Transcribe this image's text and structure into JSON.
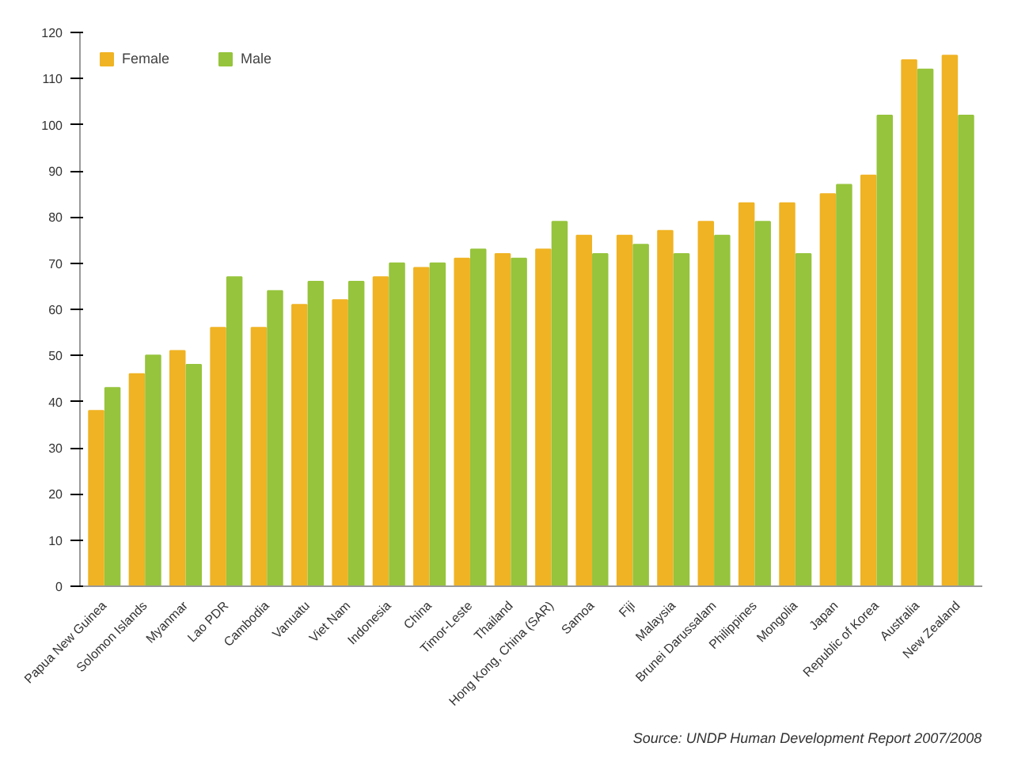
{
  "chart_data": {
    "type": "bar",
    "categories": [
      "Papua New Guinea",
      "Solomon Islands",
      "Myanmar",
      "Lao PDR",
      "Cambodia",
      "Vanuatu",
      "Viet Nam",
      "Indonesia",
      "China",
      "Timor-Leste",
      "Thailand",
      "Hong Kong, China (SAR)",
      "Samoa",
      "Fiji",
      "Malaysia",
      "Brunei Darussalam",
      "Philippines",
      "Mongolia",
      "Japan",
      "Republic of Korea",
      "Australia",
      "New Zealand"
    ],
    "series": [
      {
        "name": "Female",
        "color": "#f0b323",
        "values": [
          38,
          46,
          51,
          56,
          56,
          61,
          62,
          67,
          69,
          71,
          72,
          73,
          76,
          76,
          77,
          79,
          83,
          83,
          85,
          89,
          114,
          115
        ]
      },
      {
        "name": "Male",
        "color": "#96c43c",
        "values": [
          43,
          50,
          48,
          67,
          64,
          66,
          66,
          70,
          70,
          73,
          71,
          79,
          72,
          74,
          72,
          76,
          79,
          72,
          87,
          102,
          112,
          102
        ]
      }
    ],
    "ylim": [
      0,
      120
    ],
    "yticks": [
      0,
      10,
      20,
      30,
      40,
      50,
      60,
      70,
      80,
      90,
      100,
      110,
      120
    ],
    "grid": false,
    "legend": "top left",
    "annotations": [
      "Source: UNDP Human Development Report 2007/2008"
    ]
  }
}
